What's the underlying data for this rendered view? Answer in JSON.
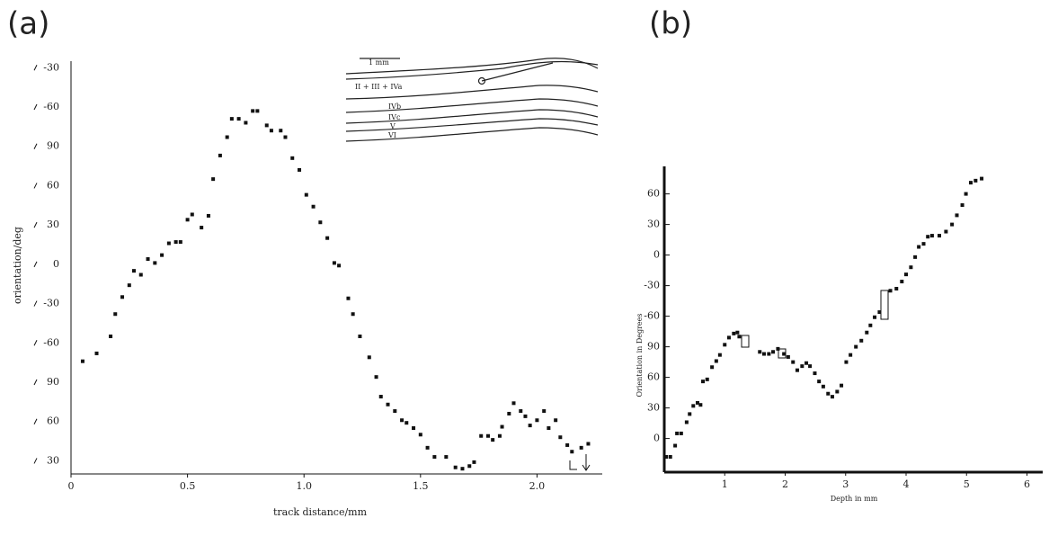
{
  "chart_data": [
    {
      "type": "scatter",
      "panel_label": "(a)",
      "x_label": "track distance/mm",
      "y_label": "orientation/deg",
      "color": "#111111",
      "inset_labels": [
        "1 mm",
        "II + III + IVa",
        "IVb",
        "IVc",
        "V",
        "VI"
      ],
      "xlim": [
        0,
        2.28
      ],
      "ylim": [
        20,
        335
      ],
      "xticks": [
        0,
        0.5,
        {
          "value": 1,
          "label": "1.0"
        },
        1.5,
        {
          "value": 2,
          "label": "2.0"
        }
      ],
      "yticks": [
        30,
        60,
        90,
        {
          "value": 120,
          "label": "-60"
        },
        {
          "value": 150,
          "label": "-30"
        },
        {
          "value": 180,
          "label": "0"
        },
        {
          "value": 210,
          "label": "30"
        },
        {
          "value": 240,
          "label": "60"
        },
        {
          "value": 270,
          "label": "90"
        },
        {
          "value": 300,
          "label": "-60"
        },
        {
          "value": 330,
          "label": "-30"
        }
      ],
      "x": [
        0.05,
        0.11,
        0.17,
        0.19,
        0.22,
        0.25,
        0.27,
        0.3,
        0.33,
        0.36,
        0.39,
        0.42,
        0.45,
        0.47,
        0.5,
        0.52,
        0.56,
        0.59,
        0.61,
        0.64,
        0.67,
        0.69,
        0.72,
        0.75,
        0.78,
        0.8,
        0.84,
        0.86,
        0.9,
        0.92,
        0.95,
        0.98,
        1.01,
        1.04,
        1.07,
        1.1,
        1.13,
        1.15,
        1.19,
        1.21,
        1.24,
        1.28,
        1.31,
        1.33,
        1.36,
        1.39,
        1.42,
        1.44,
        1.47,
        1.5,
        1.53,
        1.56,
        1.61,
        1.65,
        1.68,
        1.71,
        1.73,
        1.76,
        1.79,
        1.81,
        1.84,
        1.85,
        1.88,
        1.9,
        1.93,
        1.95,
        1.97,
        2.0,
        2.03,
        2.05,
        2.08,
        2.1,
        2.13,
        2.15,
        2.19,
        2.22
      ],
      "values": [
        106,
        112,
        125,
        142,
        155,
        164,
        175,
        172,
        184,
        181,
        187,
        196,
        197,
        197,
        214,
        218,
        208,
        217,
        245,
        263,
        277,
        291,
        291,
        288,
        297,
        297,
        286,
        282,
        282,
        277,
        261,
        252,
        233,
        224,
        212,
        200,
        181,
        179,
        154,
        142,
        125,
        109,
        94,
        79,
        73,
        68,
        61,
        59,
        55,
        50,
        40,
        33,
        33,
        25,
        24,
        26,
        29,
        49,
        49,
        46,
        49,
        56,
        66,
        74,
        68,
        64,
        57,
        61,
        68,
        55,
        61,
        48,
        42,
        37,
        40,
        43
      ]
    },
    {
      "type": "scatter",
      "panel_label": "(b)",
      "x_label": "Depth in mm",
      "y_label": "Orientation in Degrees",
      "color": "#111111",
      "xlim": [
        0,
        6.26
      ],
      "ylim": [
        -33,
        267
      ],
      "xticks": [
        1,
        2,
        3,
        4,
        5,
        6
      ],
      "yticks": [
        0,
        30,
        60,
        90,
        {
          "value": 120,
          "label": "-60"
        },
        {
          "value": 150,
          "label": "-30"
        },
        {
          "value": 180,
          "label": "0"
        },
        {
          "value": 210,
          "label": "30"
        },
        {
          "value": 240,
          "label": "60"
        }
      ],
      "x": [
        0.03,
        0.1,
        0.18,
        0.21,
        0.28,
        0.37,
        0.42,
        0.48,
        0.55,
        0.6,
        0.64,
        0.71,
        0.79,
        0.86,
        0.92,
        1.0,
        1.07,
        1.15,
        1.21,
        1.24,
        1.58,
        1.65,
        1.73,
        1.8,
        1.88,
        1.98,
        2.05,
        2.13,
        2.2,
        2.28,
        2.35,
        2.41,
        2.49,
        2.56,
        2.63,
        2.71,
        2.78,
        2.86,
        2.93,
        3.01,
        3.08,
        3.17,
        3.26,
        3.35,
        3.41,
        3.48,
        3.56,
        3.74,
        3.84,
        3.93,
        4.0,
        4.08,
        4.15,
        4.21,
        4.29,
        4.36,
        4.43,
        4.55,
        4.66,
        4.76,
        4.84,
        4.93,
        4.99,
        5.07,
        5.15,
        5.25
      ],
      "values": [
        -18,
        -18,
        -7,
        5,
        5,
        16,
        24,
        32,
        35,
        33,
        56,
        58,
        70,
        76,
        82,
        92,
        99,
        103,
        104,
        100,
        85,
        83,
        83,
        85,
        88,
        83,
        80,
        75,
        67,
        71,
        74,
        71,
        64,
        56,
        51,
        44,
        41,
        46,
        52,
        75,
        82,
        90,
        96,
        104,
        111,
        119,
        124,
        145,
        147,
        154,
        161,
        168,
        178,
        188,
        191,
        198,
        199,
        199,
        203,
        210,
        219,
        229,
        240,
        251,
        253,
        255
      ]
    }
  ]
}
